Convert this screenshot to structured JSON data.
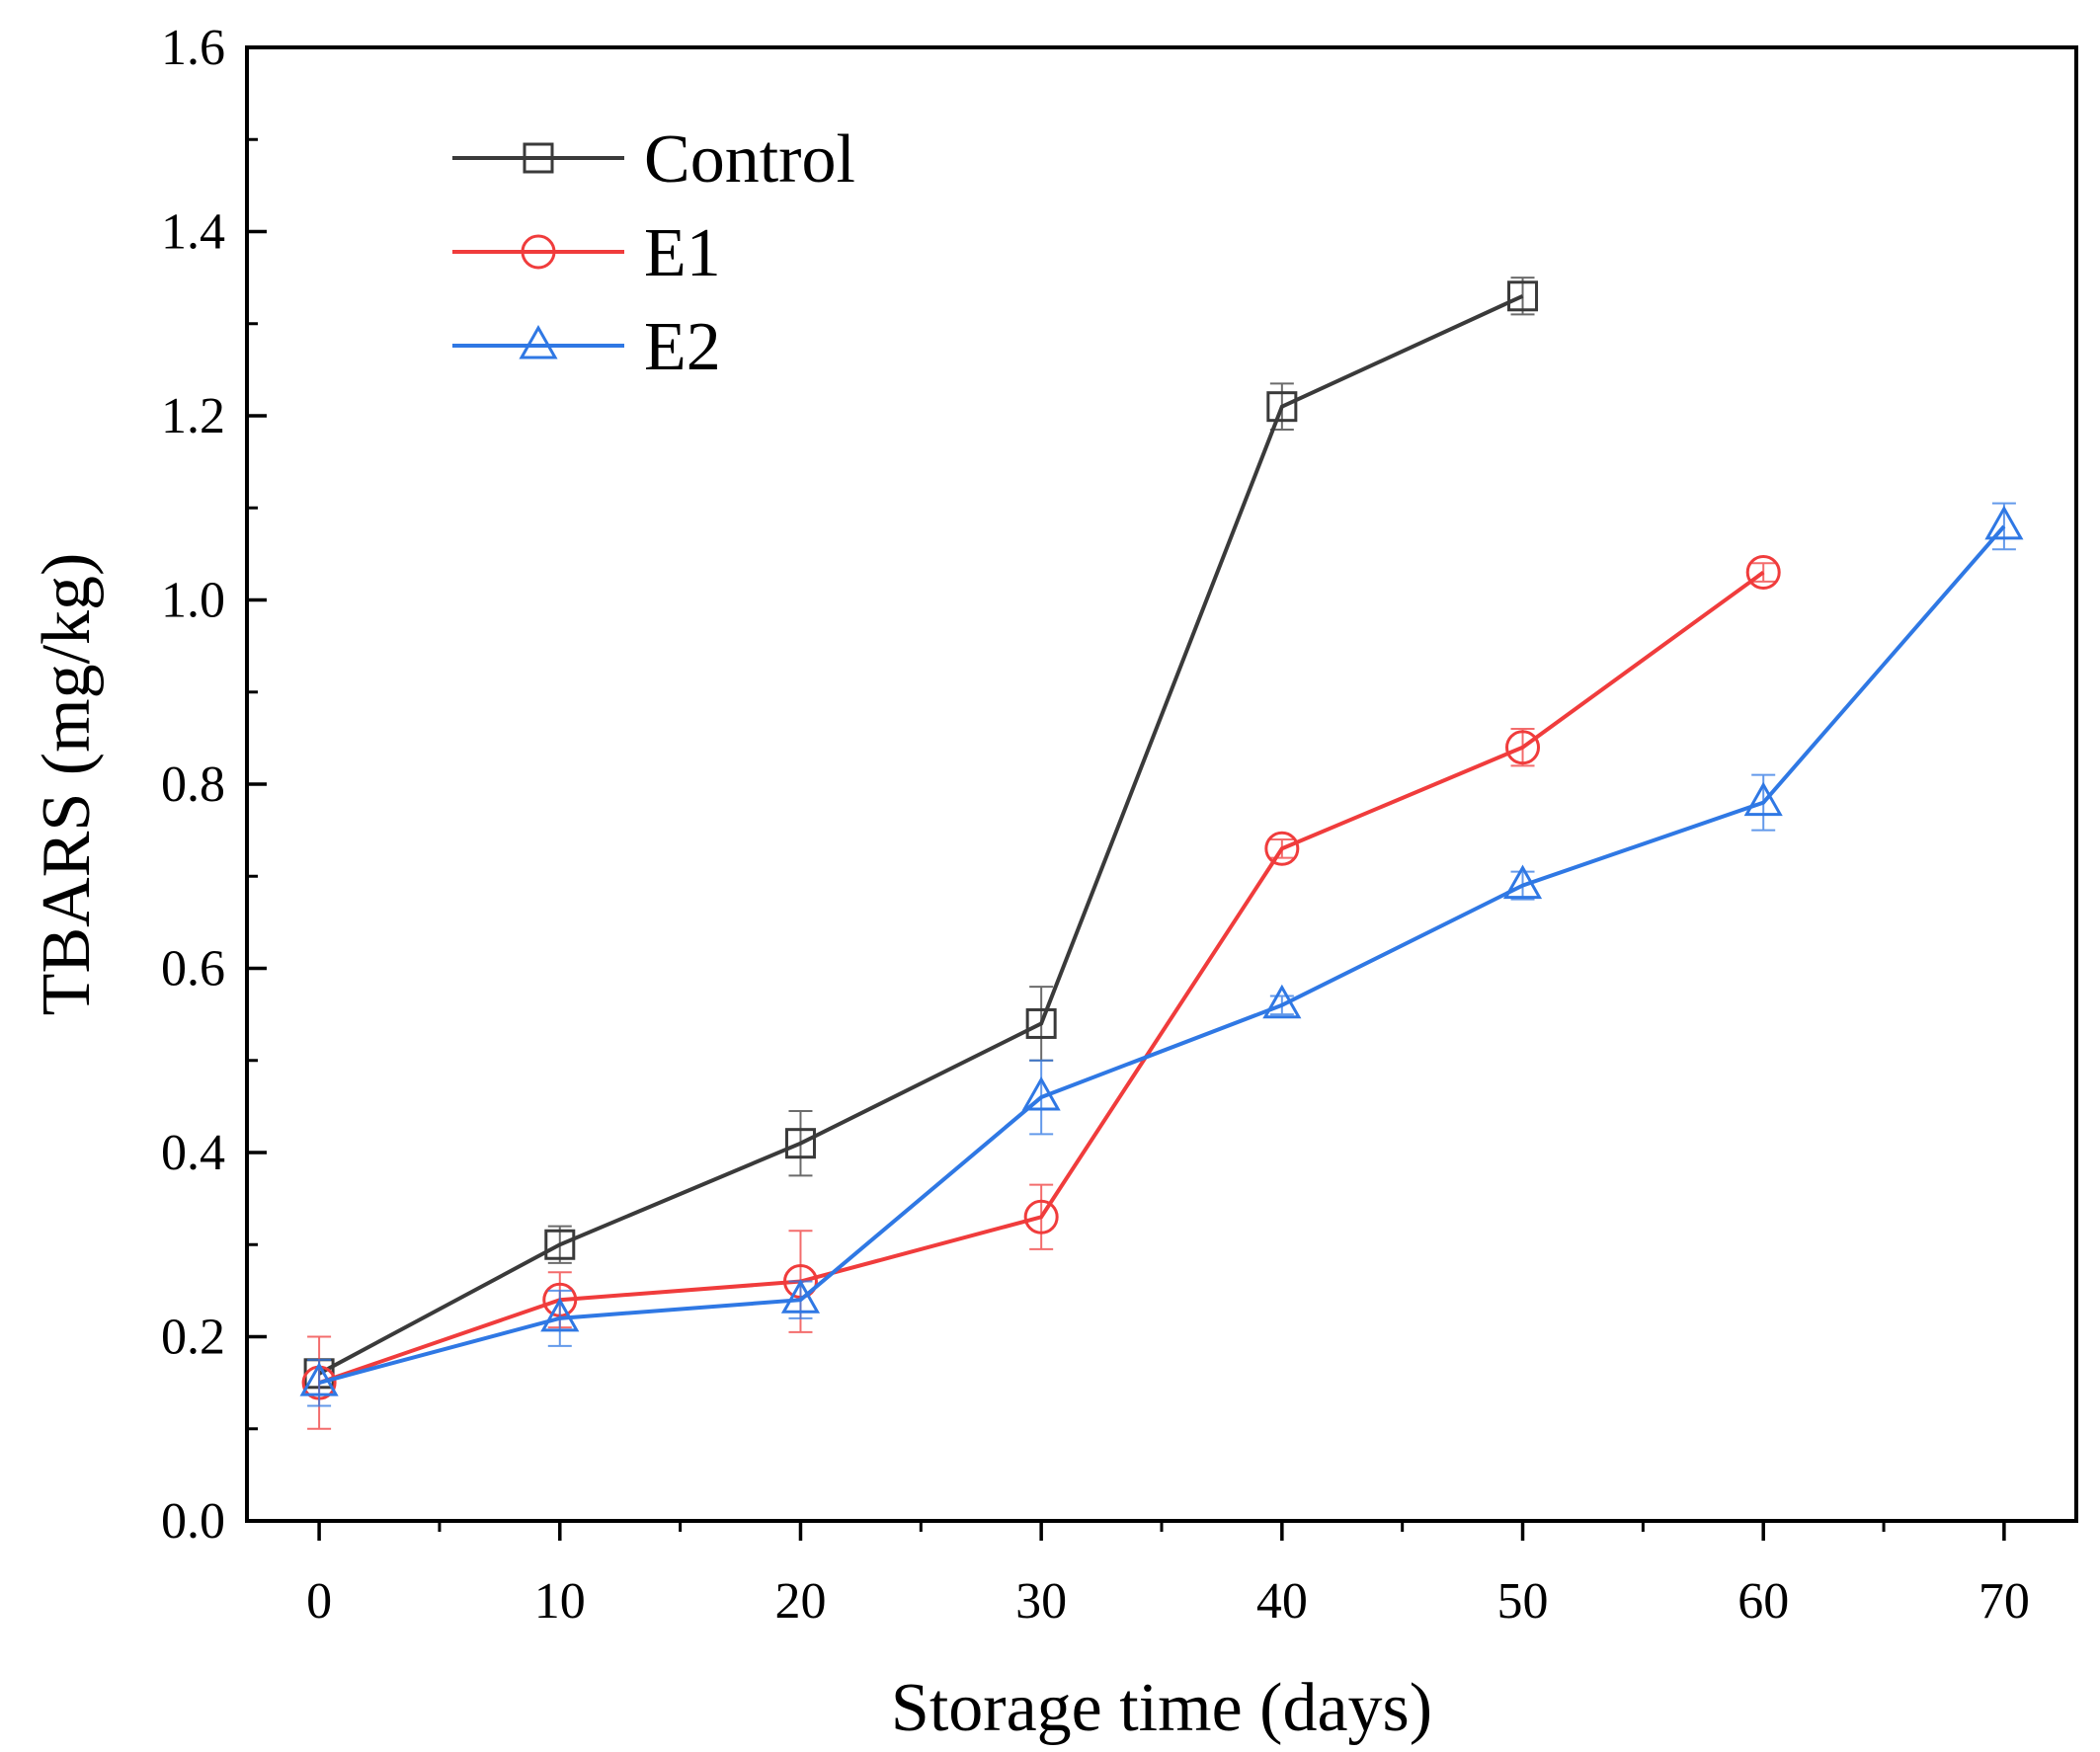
{
  "chart_data": {
    "type": "line",
    "title": "",
    "xlabel": "Storage time (days)",
    "ylabel": "TBARS (mg/kg)",
    "xlim": [
      -3,
      73
    ],
    "ylim": [
      0,
      1.6
    ],
    "xticks": [
      0,
      10,
      20,
      30,
      40,
      50,
      60,
      70
    ],
    "xtick_labels": [
      "0",
      "10",
      "20",
      "30",
      "40",
      "50",
      "60",
      "70"
    ],
    "yticks": [
      0,
      0.2,
      0.4,
      0.6,
      0.8,
      1.0,
      1.2,
      1.4,
      1.6
    ],
    "ytick_labels": [
      "0.0",
      "0.2",
      "0.4",
      "0.6",
      "0.8",
      "1.0",
      "1.2",
      "1.4",
      "1.6"
    ],
    "grid": false,
    "legend_position": "top-left",
    "series": [
      {
        "name": "Control",
        "color": "#3a3a3a",
        "marker": "square",
        "x": [
          0,
          10,
          20,
          30,
          40,
          50
        ],
        "y": [
          0.16,
          0.3,
          0.41,
          0.54,
          1.21,
          1.33
        ],
        "error": [
          0.015,
          0.02,
          0.035,
          0.04,
          0.025,
          0.02
        ]
      },
      {
        "name": "E1",
        "color": "#f03c3c",
        "marker": "circle",
        "x": [
          0,
          10,
          20,
          30,
          40,
          50,
          60
        ],
        "y": [
          0.15,
          0.24,
          0.26,
          0.33,
          0.73,
          0.84,
          1.03
        ],
        "error": [
          0.05,
          0.03,
          0.055,
          0.035,
          0.01,
          0.02,
          0.01
        ]
      },
      {
        "name": "E2",
        "color": "#2f78e4",
        "marker": "triangle",
        "x": [
          0,
          10,
          20,
          30,
          40,
          50,
          60,
          70
        ],
        "y": [
          0.15,
          0.22,
          0.24,
          0.46,
          0.56,
          0.69,
          0.78,
          1.08
        ],
        "error": [
          0.025,
          0.03,
          0.02,
          0.04,
          0.01,
          0.015,
          0.03,
          0.025
        ]
      }
    ]
  }
}
